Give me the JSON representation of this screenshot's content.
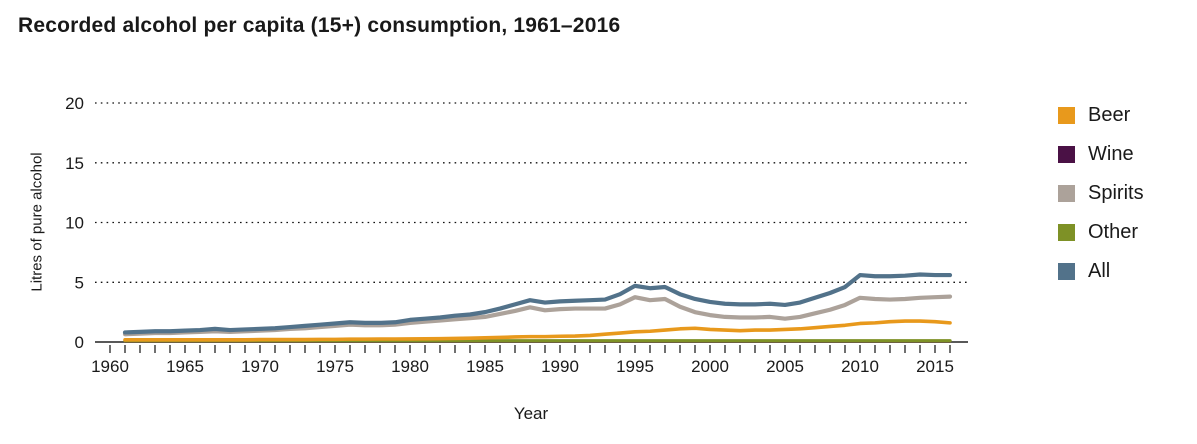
{
  "chart_data": {
    "type": "line",
    "title": "Recorded alcohol per capita (15+) consumption, 1961–2016",
    "xlabel": "Year",
    "ylabel": "Litres of pure alcohol",
    "ylim": [
      0,
      20
    ],
    "yticks": [
      0,
      5,
      10,
      15,
      20
    ],
    "xticks": [
      1960,
      1965,
      1970,
      1975,
      1980,
      1985,
      1990,
      1995,
      2000,
      2005,
      2010,
      2015
    ],
    "grid": "horizontal dotted",
    "legend_position": "right",
    "x": [
      1961,
      1962,
      1963,
      1964,
      1965,
      1966,
      1967,
      1968,
      1969,
      1970,
      1971,
      1972,
      1973,
      1974,
      1975,
      1976,
      1977,
      1978,
      1979,
      1980,
      1981,
      1982,
      1983,
      1984,
      1985,
      1986,
      1987,
      1988,
      1989,
      1990,
      1991,
      1992,
      1993,
      1994,
      1995,
      1996,
      1997,
      1998,
      1999,
      2000,
      2001,
      2002,
      2003,
      2004,
      2005,
      2006,
      2007,
      2008,
      2009,
      2010,
      2011,
      2012,
      2013,
      2014,
      2015,
      2016
    ],
    "series": [
      {
        "name": "Beer",
        "color": "#E8991C",
        "values": [
          0.18,
          0.18,
          0.18,
          0.18,
          0.18,
          0.18,
          0.18,
          0.18,
          0.18,
          0.2,
          0.2,
          0.2,
          0.2,
          0.22,
          0.22,
          0.24,
          0.24,
          0.25,
          0.25,
          0.26,
          0.27,
          0.28,
          0.3,
          0.32,
          0.35,
          0.38,
          0.42,
          0.45,
          0.45,
          0.48,
          0.5,
          0.55,
          0.65,
          0.75,
          0.85,
          0.9,
          1.0,
          1.1,
          1.15,
          1.05,
          1.0,
          0.95,
          1.0,
          1.0,
          1.05,
          1.1,
          1.2,
          1.3,
          1.4,
          1.55,
          1.6,
          1.7,
          1.75,
          1.75,
          1.7,
          1.6
        ]
      },
      {
        "name": "Wine",
        "color": "#4A1145",
        "values": [
          0.03,
          0.03,
          0.03,
          0.03,
          0.03,
          0.03,
          0.03,
          0.03,
          0.03,
          0.03,
          0.03,
          0.03,
          0.03,
          0.03,
          0.03,
          0.03,
          0.03,
          0.03,
          0.03,
          0.03,
          0.03,
          0.03,
          0.03,
          0.03,
          0.03,
          0.03,
          0.03,
          0.03,
          0.03,
          0.03,
          0.03,
          0.03,
          0.03,
          0.03,
          0.03,
          0.03,
          0.03,
          0.03,
          0.03,
          0.03,
          0.03,
          0.03,
          0.03,
          0.03,
          0.03,
          0.03,
          0.03,
          0.03,
          0.03,
          0.03,
          0.03,
          0.03,
          0.03,
          0.03,
          0.03,
          0.03
        ]
      },
      {
        "name": "Spirits",
        "color": "#ACA29A",
        "values": [
          0.65,
          0.7,
          0.75,
          0.75,
          0.8,
          0.85,
          0.9,
          0.85,
          0.9,
          0.95,
          1.0,
          1.1,
          1.15,
          1.25,
          1.35,
          1.45,
          1.4,
          1.4,
          1.45,
          1.6,
          1.7,
          1.8,
          1.9,
          2.0,
          2.1,
          2.35,
          2.6,
          2.9,
          2.65,
          2.75,
          2.8,
          2.8,
          2.8,
          3.15,
          3.75,
          3.5,
          3.6,
          2.95,
          2.5,
          2.25,
          2.1,
          2.05,
          2.05,
          2.1,
          1.95,
          2.1,
          2.4,
          2.7,
          3.1,
          3.7,
          3.6,
          3.55,
          3.6,
          3.7,
          3.75,
          3.8
        ]
      },
      {
        "name": "Other",
        "color": "#7E9126",
        "values": [
          0.1,
          0.1,
          0.1,
          0.1,
          0.1,
          0.1,
          0.1,
          0.1,
          0.1,
          0.1,
          0.1,
          0.1,
          0.1,
          0.1,
          0.1,
          0.1,
          0.1,
          0.1,
          0.1,
          0.1,
          0.1,
          0.1,
          0.1,
          0.1,
          0.1,
          0.1,
          0.1,
          0.1,
          0.1,
          0.1,
          0.1,
          0.1,
          0.1,
          0.1,
          0.1,
          0.1,
          0.1,
          0.1,
          0.1,
          0.1,
          0.1,
          0.1,
          0.1,
          0.1,
          0.1,
          0.1,
          0.1,
          0.1,
          0.1,
          0.1,
          0.1,
          0.1,
          0.1,
          0.1,
          0.1,
          0.1
        ]
      },
      {
        "name": "All",
        "color": "#52728A",
        "values": [
          0.8,
          0.85,
          0.9,
          0.9,
          0.95,
          1.0,
          1.1,
          1.0,
          1.05,
          1.1,
          1.15,
          1.25,
          1.35,
          1.45,
          1.55,
          1.65,
          1.6,
          1.6,
          1.65,
          1.85,
          1.95,
          2.05,
          2.2,
          2.3,
          2.5,
          2.8,
          3.15,
          3.5,
          3.3,
          3.4,
          3.45,
          3.5,
          3.55,
          4.0,
          4.7,
          4.5,
          4.6,
          4.0,
          3.6,
          3.35,
          3.2,
          3.15,
          3.15,
          3.2,
          3.1,
          3.3,
          3.7,
          4.1,
          4.6,
          5.6,
          5.5,
          5.5,
          5.55,
          5.65,
          5.6,
          5.6
        ]
      }
    ]
  }
}
